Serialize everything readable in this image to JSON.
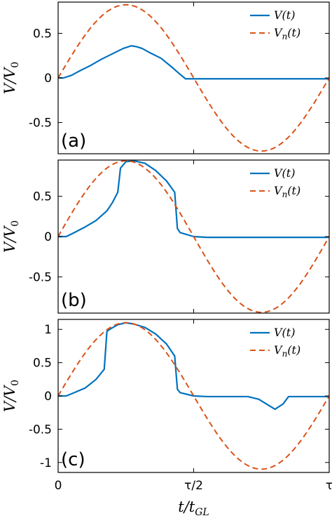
{
  "chart_data": [
    {
      "type": "line",
      "panel_label": "(a)",
      "ylabel": "V/V₀",
      "xlabel": "",
      "xlim": [
        0,
        1
      ],
      "ylim": [
        -0.85,
        0.85
      ],
      "yticks": [
        0.5,
        0,
        -0.5
      ],
      "ytick_labels": [
        "0.5",
        "0",
        "-0.5"
      ],
      "xticks": [
        0,
        0.5,
        1
      ],
      "legend_position": "top-right",
      "series": [
        {
          "name": "V(t)",
          "style": "solid",
          "color": "#0072bd",
          "x": [
            0,
            0.02,
            0.05,
            0.08,
            0.12,
            0.16,
            0.2,
            0.24,
            0.27,
            0.29,
            0.31,
            0.34,
            0.38,
            0.42,
            0.45,
            0.47,
            0.5,
            0.55,
            0.6,
            0.65,
            0.7,
            0.75,
            0.8,
            0.85,
            0.9,
            0.95,
            1.0
          ],
          "y": [
            0.0,
            0.0,
            0.03,
            0.08,
            0.14,
            0.21,
            0.27,
            0.33,
            0.36,
            0.35,
            0.33,
            0.28,
            0.22,
            0.12,
            0.04,
            -0.01,
            -0.01,
            -0.01,
            -0.01,
            -0.01,
            -0.01,
            -0.01,
            -0.01,
            -0.01,
            -0.01,
            -0.01,
            -0.01
          ]
        },
        {
          "name": "Vₙ(t)",
          "style": "dashed",
          "color": "#d95319",
          "function": "amplitude*sin(2*pi*x)",
          "amplitude": 0.82
        }
      ]
    },
    {
      "type": "line",
      "panel_label": "(b)",
      "ylabel": "V/V₀",
      "xlabel": "",
      "xlim": [
        0,
        1
      ],
      "ylim": [
        -0.95,
        0.95
      ],
      "yticks": [
        0.5,
        0,
        -0.5
      ],
      "ytick_labels": [
        "0.5",
        "0",
        "-0.5"
      ],
      "xticks": [
        0,
        0.5,
        1
      ],
      "legend_position": "top-right",
      "series": [
        {
          "name": "V(t)",
          "style": "solid",
          "color": "#0072bd",
          "x": [
            0,
            0.03,
            0.06,
            0.1,
            0.14,
            0.18,
            0.2,
            0.22,
            0.23,
            0.25,
            0.28,
            0.32,
            0.36,
            0.4,
            0.43,
            0.44,
            0.45,
            0.5,
            0.55,
            0.6,
            0.7,
            0.8,
            0.9,
            1.0
          ],
          "y": [
            0.0,
            0.0,
            0.05,
            0.12,
            0.2,
            0.32,
            0.42,
            0.55,
            0.85,
            0.93,
            0.94,
            0.91,
            0.82,
            0.69,
            0.55,
            0.1,
            0.05,
            0.0,
            -0.01,
            -0.01,
            -0.01,
            -0.01,
            -0.01,
            -0.01
          ]
        },
        {
          "name": "Vₙ(t)",
          "style": "dashed",
          "color": "#d95319",
          "function": "amplitude*sin(2*pi*x)",
          "amplitude": 0.94
        }
      ]
    },
    {
      "type": "line",
      "panel_label": "(c)",
      "ylabel": "V/V₀",
      "xlabel": "t/t_GL",
      "xlim": [
        0,
        1
      ],
      "ylim": [
        -1.15,
        1.15
      ],
      "yticks": [
        1,
        0.5,
        0,
        -0.5,
        -1
      ],
      "ytick_labels": [
        "1",
        "0.5",
        "0",
        "-0.5",
        "-1"
      ],
      "xticks": [
        0,
        0.5,
        1
      ],
      "xtick_labels": [
        "0",
        "τ/2",
        "τ"
      ],
      "legend_position": "top-right",
      "series": [
        {
          "name": "V(t)",
          "style": "solid",
          "color": "#0072bd",
          "x": [
            0,
            0.03,
            0.06,
            0.1,
            0.14,
            0.17,
            0.18,
            0.19,
            0.22,
            0.25,
            0.28,
            0.32,
            0.36,
            0.4,
            0.43,
            0.44,
            0.45,
            0.5,
            0.55,
            0.6,
            0.7,
            0.74,
            0.78,
            0.8,
            0.83,
            0.85,
            0.9,
            1.0
          ],
          "y": [
            0.0,
            0.0,
            0.05,
            0.12,
            0.25,
            0.4,
            0.97,
            1.0,
            1.07,
            1.1,
            1.08,
            1.03,
            0.93,
            0.78,
            0.6,
            0.1,
            0.05,
            0.0,
            -0.01,
            -0.01,
            -0.01,
            -0.05,
            -0.15,
            -0.2,
            -0.12,
            -0.01,
            -0.01,
            -0.01
          ]
        },
        {
          "name": "Vₙ(t)",
          "style": "dashed",
          "color": "#d95319",
          "function": "amplitude*sin(2*pi*x)",
          "amplitude": 1.1
        }
      ]
    }
  ],
  "x_axis": {
    "tick_labels": [
      "0",
      "τ/2",
      "τ"
    ],
    "title_main": "t/t",
    "title_sub": "GL"
  },
  "y_axis": {
    "title_main": "V/V",
    "title_sub": "0"
  },
  "legend": {
    "solid_main": "V(t)",
    "dashed_main": "V",
    "dashed_sub": "n",
    "dashed_tail": "(t)"
  }
}
